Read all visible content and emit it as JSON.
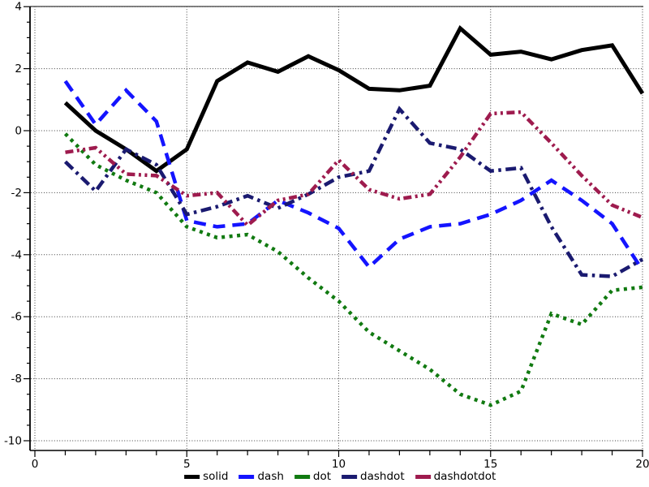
{
  "chart_data": {
    "type": "line",
    "title": "",
    "xlabel": "",
    "ylabel": "",
    "xlim": [
      0,
      20
    ],
    "ylim": [
      -10,
      4
    ],
    "grid": "dotted",
    "legend_position": "bottom-center",
    "x_major_ticks": [
      0,
      5,
      10,
      15,
      20
    ],
    "x_major_tick_labels": [
      "0",
      "5",
      "10",
      "15",
      "20"
    ],
    "x_minor_step": 1,
    "y_major_ticks": [
      4,
      2,
      0,
      -2,
      -4,
      -6,
      -8,
      -10
    ],
    "y_major_tick_labels": [
      "4",
      "2",
      "0",
      "-2",
      "-4",
      "-6",
      "-8",
      "-10"
    ],
    "y_minor_step": 0.5,
    "x": [
      1,
      2,
      3,
      4,
      5,
      6,
      7,
      8,
      9,
      10,
      11,
      12,
      13,
      14,
      15,
      16,
      17,
      18,
      19,
      20
    ],
    "series": [
      {
        "name": "solid",
        "color": "#000000",
        "line_style": "solid",
        "width": 5,
        "values": [
          0.9,
          0.0,
          -0.6,
          -1.3,
          -0.6,
          1.6,
          2.2,
          1.9,
          2.4,
          1.95,
          1.35,
          1.3,
          1.45,
          3.3,
          2.45,
          2.55,
          2.3,
          2.6,
          2.75,
          1.2
        ]
      },
      {
        "name": "dash",
        "color": "#1414ff",
        "line_style": "dash",
        "width": 4.5,
        "values": [
          1.6,
          0.2,
          1.3,
          0.3,
          -2.9,
          -3.1,
          -3.0,
          -2.25,
          -2.65,
          -3.15,
          -4.4,
          -3.5,
          -3.1,
          -3.0,
          -2.7,
          -2.25,
          -1.6,
          -2.25,
          -3.0,
          -4.5
        ]
      },
      {
        "name": "dot",
        "color": "#117a11",
        "line_style": "dot",
        "width": 4.5,
        "values": [
          -0.1,
          -1.1,
          -1.6,
          -2.0,
          -3.1,
          -3.45,
          -3.35,
          -3.9,
          -4.75,
          -5.5,
          -6.5,
          -7.1,
          -7.7,
          -8.5,
          -8.85,
          -8.4,
          -5.9,
          -6.25,
          -5.15,
          -5.05
        ]
      },
      {
        "name": "dashdot",
        "color": "#1a1a70",
        "line_style": "dashdot",
        "width": 4.5,
        "values": [
          -1.0,
          -1.95,
          -0.6,
          -1.1,
          -2.7,
          -2.45,
          -2.1,
          -2.5,
          -2.05,
          -1.5,
          -1.3,
          0.7,
          -0.4,
          -0.6,
          -1.3,
          -1.2,
          -3.1,
          -4.65,
          -4.7,
          -4.15
        ]
      },
      {
        "name": "dashdotdot",
        "color": "#9e1b4e",
        "line_style": "dashdotdot",
        "width": 4.5,
        "values": [
          -0.7,
          -0.55,
          -1.4,
          -1.45,
          -2.1,
          -2.0,
          -3.05,
          -2.25,
          -2.05,
          -0.95,
          -1.9,
          -2.2,
          -2.05,
          -0.85,
          0.55,
          0.6,
          -0.4,
          -1.45,
          -2.4,
          -2.8
        ]
      }
    ]
  },
  "legend": {
    "items": [
      "solid",
      "dash",
      "dot",
      "dashdot",
      "dashdotdot"
    ]
  },
  "style": {
    "grid_color": "#2a2a2a",
    "axis_color": "#000000",
    "frame_color": "#5a5a5a",
    "tick_label_color": "#000000",
    "background": "#ffffff"
  }
}
